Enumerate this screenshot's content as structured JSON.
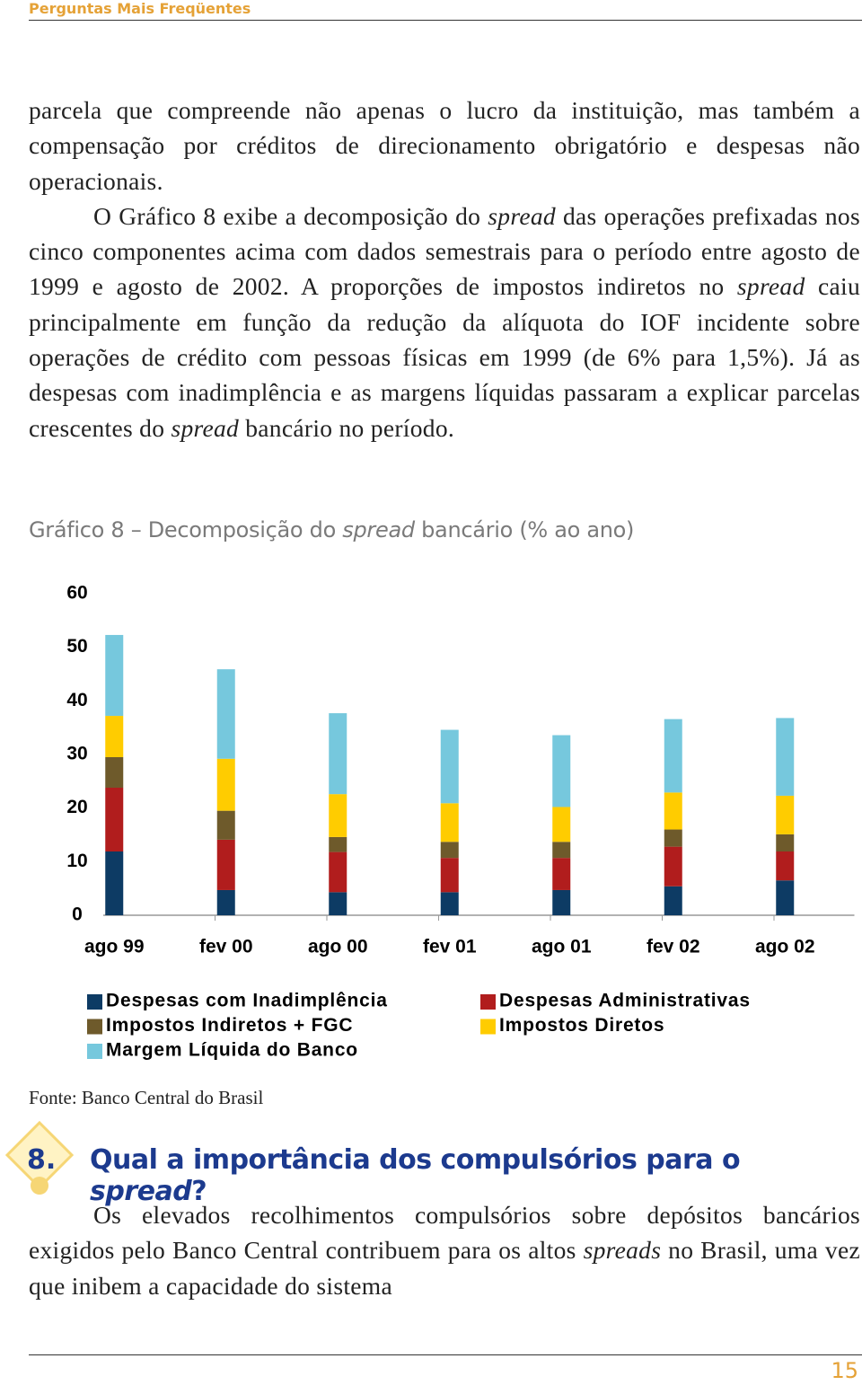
{
  "header": {
    "title": "Perguntas Mais Freqüentes"
  },
  "body": {
    "paragraph_1": [
      "parcela que compreende não apenas o lucro da instituição, mas também a compensação por créditos de direcionamento obrigatório e despesas não operacionais."
    ],
    "paragraph_2": [
      "O Gráfico 8 exibe a decomposição do ",
      "spread",
      " das operações prefixadas nos cinco componentes acima com dados semestrais para o período entre agosto de 1999 e agosto de 2002. A proporções de impostos indiretos no ",
      "spread",
      " caiu principalmente em função da redução da alíquota do IOF incidente sobre operações de crédito com pessoas físicas em 1999 (de 6% para 1,5%). Já as despesas com inadimplência e as margens líquidas passaram a explicar parcelas crescentes do ",
      "spread",
      " bancário no período."
    ]
  },
  "chart_data": {
    "type": "stacked_bar",
    "title": [
      "Gráfico 8 – Decomposição do ",
      "spread",
      " bancário (% ao ano)"
    ],
    "categories": [
      "ago 99",
      "fev 00",
      "ago 00",
      "fev 01",
      "ago 01",
      "fev 02",
      "ago 02"
    ],
    "series": [
      {
        "name": "Despesas com Inadimplência",
        "color": "#0d3b64",
        "values": [
          11.9,
          4.7,
          4.3,
          4.3,
          4.7,
          5.4,
          6.5
        ]
      },
      {
        "name": "Despesas Administrativas",
        "color": "#b11d1d",
        "values": [
          11.9,
          9.4,
          7.5,
          6.4,
          6.0,
          7.4,
          5.4
        ]
      },
      {
        "name": "Impostos Indiretos + FGC",
        "color": "#6e5a2b",
        "values": [
          5.7,
          5.4,
          2.8,
          3.0,
          3.0,
          3.2,
          3.2
        ]
      },
      {
        "name": "Impostos Diretos",
        "color": "#ffcc00",
        "values": [
          7.7,
          9.7,
          8.0,
          7.2,
          6.5,
          6.9,
          7.2
        ]
      },
      {
        "name": "Margem Líquida do Banco",
        "color": "#76c8dd",
        "values": [
          15.1,
          16.7,
          15.1,
          13.7,
          13.4,
          13.7,
          14.5
        ]
      }
    ],
    "ylim": [
      0,
      60
    ],
    "yticks": [
      0,
      10,
      20,
      30,
      40,
      50,
      60
    ],
    "source": "Fonte: Banco Central do Brasil"
  },
  "section": {
    "number": "8.",
    "title": [
      "Qual a importância dos compulsórios para o ",
      "spread",
      "?"
    ],
    "paragraph": [
      "Os elevados recolhimentos compulsórios sobre depósitos bancários exigidos pelo Banco Central contribuem para os altos ",
      "spreads",
      " no Brasil, uma vez que inibem a capacidade do sistema"
    ]
  },
  "footer": {
    "page_number": "15"
  }
}
